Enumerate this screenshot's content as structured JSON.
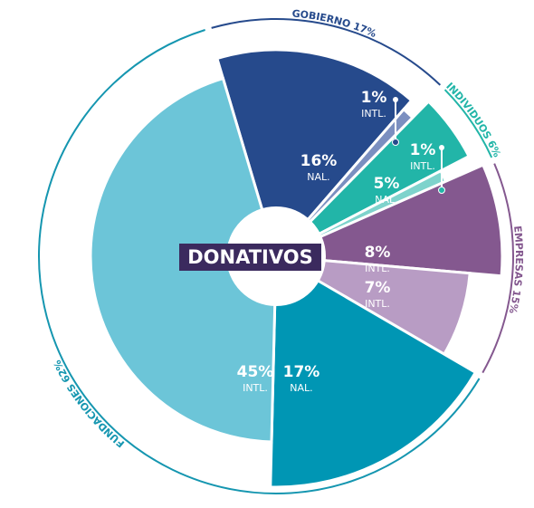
{
  "chart_data": {
    "type": "nested_donut",
    "center_label": "DONATIVOS",
    "groups": [
      {
        "label": "GOBIERNO 17%",
        "value": 17,
        "color": "#264a8c",
        "segments": [
          {
            "name": "NAL.",
            "value": 16,
            "value_label": "16%",
            "color": "#264a8c"
          },
          {
            "name": "INTL.",
            "value": 1,
            "value_label": "1%",
            "color": "#7b8fc0"
          }
        ]
      },
      {
        "label": "INDIVIDUOS 6%",
        "value": 6,
        "color": "#22b5a8",
        "segments": [
          {
            "name": "NAL.",
            "value": 5,
            "value_label": "5%",
            "color": "#22b5a8"
          },
          {
            "name": "INTL.",
            "value": 1,
            "value_label": "1%",
            "color": "#7ed3cc"
          }
        ]
      },
      {
        "label": "EMPRESAS 15%",
        "value": 15,
        "color": "#84588f",
        "segments": [
          {
            "name": "INTL.",
            "value": 8,
            "value_label": "8%",
            "color": "#84588f"
          },
          {
            "name": "INTL.",
            "value": 7,
            "value_label": "7%",
            "color": "#b89cc4"
          }
        ]
      },
      {
        "label": "FUNDACIONES 62%",
        "value": 62,
        "color": "#1596b0",
        "segments": [
          {
            "name": "NAL.",
            "value": 17,
            "value_label": "17%",
            "color": "#0096b4"
          },
          {
            "name": "INTL.",
            "value": 45,
            "value_label": "45%",
            "color": "#6cc5d8"
          }
        ]
      }
    ]
  }
}
